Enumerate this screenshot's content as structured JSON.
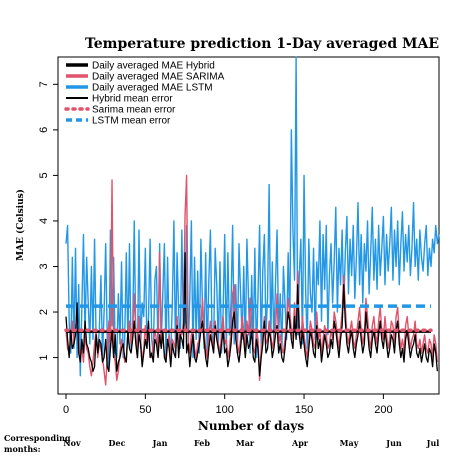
{
  "chart_data": {
    "type": "line",
    "title": "Temperature prediction 1-Day averaged MAE",
    "xlabel": "Number of days",
    "ylabel": "MAE (Celsius)",
    "xlim": [
      0,
      230
    ],
    "ylim": [
      0.2,
      7.6
    ],
    "x_ticks": [
      0,
      50,
      100,
      150,
      200
    ],
    "y_ticks": [
      1,
      2,
      3,
      4,
      5,
      6,
      7
    ],
    "legend_position": "top-left",
    "legend": [
      {
        "label": "Daily averaged MAE Hybrid",
        "color": "#000000",
        "style": "solid-thick"
      },
      {
        "label": "Daily averaged MAE SARIMA",
        "color": "#DF536B",
        "style": "solid-thick"
      },
      {
        "label": "Daily averaged MAE LSTM",
        "color": "#2297E6",
        "style": "solid-thick"
      },
      {
        "label": "Hybrid mean error",
        "color": "#000000",
        "style": "solid"
      },
      {
        "label": "Sarima mean error",
        "color": "#DF536B",
        "style": "dotted"
      },
      {
        "label": "LSTM mean error",
        "color": "#2297E6",
        "style": "dashed"
      }
    ],
    "series": [
      {
        "key": "hybrid",
        "color": "#000000",
        "values": [
          1.9,
          1.4,
          1.0,
          1.6,
          1.2,
          1.3,
          1.5,
          2.2,
          1.1,
          0.9,
          1.4,
          1.1,
          1.8,
          1.3,
          1.2,
          1.0,
          0.9,
          0.7,
          0.8,
          1.5,
          1.1,
          1.4,
          1.3,
          0.9,
          1.0,
          1.4,
          0.8,
          0.7,
          1.2,
          1.6,
          1.0,
          1.5,
          0.7,
          0.9,
          1.0,
          1.2,
          1.3,
          1.0,
          0.9,
          1.6,
          1.2,
          1.1,
          1.4,
          1.8,
          1.3,
          1.0,
          1.5,
          1.3,
          0.8,
          1.1,
          1.4,
          1.2,
          1.8,
          1.0,
          1.1,
          0.9,
          1.4,
          1.3,
          1.0,
          1.5,
          1.2,
          1.6,
          1.0,
          0.9,
          1.4,
          1.2,
          0.8,
          1.3,
          1.1,
          1.0,
          1.7,
          1.0,
          1.5,
          1.4,
          1.2,
          3.3,
          1.1,
          1.3,
          0.8,
          1.2,
          1.5,
          1.0,
          0.9,
          1.1,
          1.3,
          1.6,
          1.8,
          1.4,
          1.0,
          0.8,
          1.2,
          1.5,
          1.3,
          1.1,
          1.7,
          1.4,
          1.2,
          1.0,
          1.3,
          1.6,
          1.1,
          1.2,
          0.8,
          1.0,
          1.3,
          1.8,
          2.0,
          1.4,
          1.1,
          0.9,
          1.2,
          1.6,
          1.4,
          1.0,
          1.5,
          1.2,
          1.3,
          1.6,
          1.0,
          0.9,
          1.4,
          1.2,
          0.6,
          1.0,
          1.3,
          1.8,
          1.1,
          1.2,
          1.6,
          1.4,
          1.0,
          1.2,
          1.5,
          1.7,
          1.1,
          1.3,
          1.0,
          0.9,
          1.2,
          1.6,
          2.0,
          1.8,
          1.4,
          1.2,
          1.9,
          1.4,
          2.6,
          1.5,
          1.2,
          1.6,
          1.3,
          1.0,
          0.8,
          1.2,
          1.6,
          1.4,
          1.1,
          1.0,
          1.7,
          1.2,
          1.4,
          0.9,
          1.2,
          1.5,
          1.3,
          1.0,
          1.1,
          1.4,
          1.2,
          1.8,
          1.6,
          1.3,
          1.0,
          1.4,
          1.7,
          2.6,
          1.8,
          1.3,
          1.1,
          1.4,
          1.6,
          1.2,
          1.0,
          1.3,
          1.5,
          1.8,
          1.4,
          1.1,
          1.3,
          2.0,
          1.6,
          1.2,
          1.0,
          1.4,
          1.6,
          1.3,
          1.1,
          1.5,
          1.8,
          1.4,
          1.2,
          1.6,
          1.3,
          1.0,
          1.2,
          1.5,
          1.4,
          1.1,
          1.6,
          1.8,
          1.3,
          1.0,
          1.2,
          0.9,
          1.4,
          1.6,
          1.3,
          1.0,
          1.2,
          1.3,
          1.5,
          1.1,
          1.0,
          1.2,
          0.9,
          1.1,
          1.3,
          1.0,
          0.9,
          1.2,
          1.1,
          0.8,
          1.3,
          1.1,
          0.7
        ]
      },
      {
        "key": "sarima",
        "color": "#DF536B",
        "values": [
          1.6,
          1.2,
          1.1,
          1.4,
          1.8,
          1.3,
          1.6,
          2.0,
          1.4,
          1.0,
          1.2,
          0.9,
          1.5,
          1.2,
          1.1,
          0.8,
          0.6,
          0.9,
          1.3,
          1.6,
          1.0,
          1.3,
          1.2,
          1.0,
          0.7,
          0.4,
          1.0,
          1.8,
          1.2,
          4.9,
          1.1,
          0.9,
          0.5,
          0.7,
          1.1,
          1.4,
          1.2,
          0.9,
          1.0,
          1.5,
          1.8,
          1.3,
          1.6,
          2.4,
          1.5,
          1.0,
          1.9,
          1.4,
          0.9,
          1.2,
          1.7,
          1.3,
          1.5,
          1.1,
          1.0,
          1.3,
          1.6,
          1.4,
          1.2,
          3.3,
          1.3,
          1.4,
          1.1,
          0.9,
          1.3,
          1.5,
          1.0,
          1.4,
          1.3,
          1.2,
          1.9,
          1.1,
          1.6,
          1.5,
          1.8,
          4.1,
          5.0,
          1.4,
          1.1,
          1.5,
          1.6,
          1.2,
          1.0,
          1.3,
          1.4,
          1.7,
          2.3,
          1.6,
          1.2,
          1.0,
          1.5,
          1.8,
          1.4,
          1.2,
          1.8,
          1.5,
          1.3,
          1.1,
          1.5,
          1.9,
          1.3,
          1.4,
          1.0,
          1.2,
          1.6,
          2.4,
          2.6,
          1.7,
          1.3,
          1.1,
          1.4,
          1.9,
          1.6,
          1.2,
          1.8,
          1.5,
          2.3,
          1.8,
          1.2,
          1.1,
          1.6,
          1.4,
          0.5,
          1.2,
          1.5,
          1.9,
          1.3,
          1.4,
          1.8,
          1.5,
          1.2,
          1.4,
          1.6,
          2.4,
          1.3,
          1.5,
          1.2,
          1.1,
          1.4,
          1.8,
          2.3,
          2.0,
          1.6,
          1.4,
          2.2,
          1.5,
          2.9,
          1.7,
          1.4,
          1.9,
          1.5,
          1.2,
          1.0,
          1.4,
          1.8,
          1.6,
          1.3,
          1.2,
          2.0,
          1.4,
          1.6,
          1.1,
          1.4,
          1.7,
          1.5,
          1.2,
          1.3,
          1.6,
          1.4,
          2.0,
          1.8,
          1.5,
          1.2,
          1.6,
          2.0,
          2.8,
          2.1,
          1.5,
          1.3,
          1.6,
          1.8,
          1.4,
          1.2,
          1.5,
          1.8,
          2.1,
          1.6,
          1.3,
          1.5,
          2.3,
          1.9,
          1.4,
          1.2,
          1.7,
          1.9,
          1.5,
          1.3,
          1.8,
          2.1,
          1.6,
          1.4,
          1.9,
          1.5,
          1.2,
          1.4,
          1.8,
          1.7,
          1.3,
          1.9,
          2.1,
          1.5,
          1.2,
          1.4,
          1.1,
          1.7,
          1.9,
          1.5,
          1.2,
          1.4,
          1.5,
          1.8,
          1.3,
          1.2,
          1.4,
          1.1,
          1.3,
          1.5,
          1.2,
          1.1,
          1.4,
          1.3,
          1.0,
          1.5,
          1.3,
          0.9
        ]
      },
      {
        "key": "lstm",
        "color": "#2297E6",
        "values": [
          3.5,
          3.9,
          1.8,
          1.1,
          3.2,
          1.2,
          3.4,
          1.0,
          2.6,
          0.6,
          2.1,
          3.7,
          1.5,
          3.2,
          2.2,
          1.3,
          3.0,
          1.4,
          3.6,
          1.3,
          1.2,
          1.6,
          2.8,
          1.0,
          2.0,
          3.5,
          1.4,
          0.7,
          3.8,
          1.7,
          3.2,
          1.1,
          1.0,
          2.4,
          1.3,
          3.1,
          1.0,
          1.4,
          3.3,
          1.3,
          3.5,
          1.2,
          1.6,
          4.0,
          1.4,
          1.0,
          3.8,
          1.2,
          2.2,
          1.9,
          3.4,
          1.2,
          1.9,
          3.6,
          1.4,
          1.1,
          2.7,
          3.0,
          1.1,
          3.5,
          1.3,
          2.4,
          3.5,
          1.0,
          3.2,
          1.4,
          1.1,
          2.2,
          4.0,
          1.1,
          3.3,
          2.0,
          1.2,
          3.8,
          1.6,
          1.8,
          3.9,
          1.2,
          2.3,
          4.0,
          1.0,
          3.2,
          1.4,
          2.9,
          1.1,
          3.6,
          2.1,
          1.2,
          3.3,
          1.0,
          2.7,
          3.8,
          1.5,
          1.3,
          3.4,
          2.6,
          1.2,
          3.1,
          1.1,
          2.0,
          3.7,
          1.2,
          3.3,
          1.5,
          2.2,
          3.9,
          1.3,
          2.6,
          1.1,
          3.5,
          2.4,
          1.4,
          3.0,
          1.2,
          3.6,
          2.3,
          1.1,
          2.8,
          1.3,
          3.4,
          1.0,
          2.4,
          3.9,
          1.2,
          2.9,
          3.7,
          1.5,
          2.3,
          4.8,
          1.4,
          3.1,
          1.3,
          2.6,
          3.8,
          1.5,
          2.4,
          1.1,
          3.0,
          2.2,
          1.4,
          3.3,
          1.6,
          6.0,
          3.8,
          2.7,
          7.6,
          1.5,
          2.8,
          3.6,
          1.3,
          5.0,
          2.5,
          1.2,
          3.6,
          2.4,
          2.0,
          3.4,
          1.4,
          3.1,
          2.6,
          4.0,
          1.8,
          3.7,
          2.5,
          3.9,
          1.5,
          2.8,
          3.5,
          2.2,
          3.1,
          4.3,
          2.0,
          3.4,
          2.6,
          3.8,
          2.1,
          3.3,
          4.1,
          2.4,
          3.6,
          2.8,
          3.9,
          2.3,
          3.2,
          4.4,
          2.6,
          3.7,
          2.2,
          3.5,
          2.9,
          4.0,
          2.4,
          3.3,
          4.3,
          2.7,
          3.6,
          2.5,
          3.9,
          2.8,
          3.4,
          4.1,
          2.6,
          3.7,
          2.9,
          3.5,
          4.3,
          2.7,
          3.8,
          3.0,
          4.0,
          2.6,
          3.5,
          4.2,
          2.9,
          3.7,
          3.1,
          3.9,
          2.8,
          3.4,
          4.4,
          3.0,
          3.6,
          2.7,
          3.8,
          3.2,
          2.9,
          3.5,
          3.9,
          2.8,
          3.4,
          3.0,
          3.6,
          3.3,
          3.9,
          3.5,
          3.7
        ]
      }
    ],
    "mean_lines": [
      {
        "key": "hybrid-mean",
        "value": 1.57,
        "color": "#000000",
        "style": "solid"
      },
      {
        "key": "sarima-mean",
        "value": 1.6,
        "color": "#DF536B",
        "style": "dotted"
      },
      {
        "key": "lstm-mean",
        "value": 2.13,
        "color": "#2297E6",
        "style": "dashed"
      }
    ],
    "months_title": "Corresponding months:",
    "months": [
      "Nov",
      "Dec",
      "Jan",
      "Feb",
      "Mar",
      "Apr",
      "May",
      "Jun",
      "Jul"
    ]
  }
}
